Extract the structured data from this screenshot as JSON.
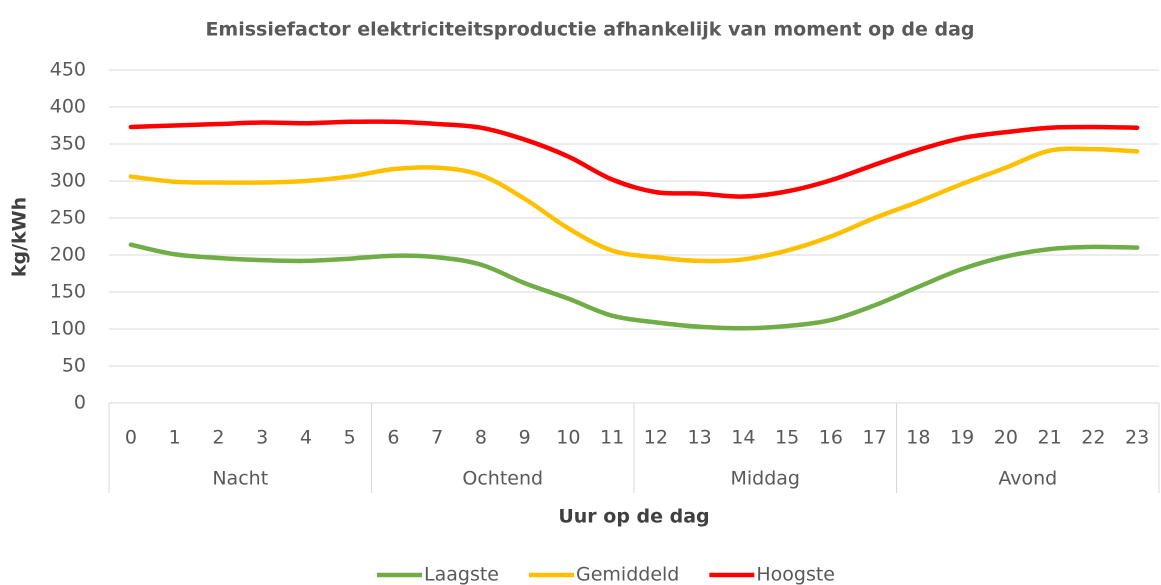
{
  "chart_data": {
    "type": "line",
    "title": "Emissiefactor elektriciteitsproductie afhankelijk van moment op de dag",
    "x_label": "Uur op de dag",
    "y_label": "kg/kWh",
    "categories": [
      "0",
      "1",
      "2",
      "3",
      "4",
      "5",
      "6",
      "7",
      "8",
      "9",
      "10",
      "11",
      "12",
      "13",
      "14",
      "15",
      "16",
      "17",
      "18",
      "19",
      "20",
      "21",
      "22",
      "23"
    ],
    "groups": [
      "Nacht",
      "Ochtend",
      "Middag",
      "Avond"
    ],
    "series": [
      {
        "name": "Laagste",
        "color": "#70ad47",
        "values": [
          214,
          201,
          196,
          193,
          192,
          195,
          199,
          197,
          187,
          162,
          141,
          118,
          109,
          103,
          101,
          104,
          112,
          132,
          157,
          181,
          198,
          208,
          211,
          210
        ]
      },
      {
        "name": "Gemiddeld",
        "color": "#ffc000",
        "values": [
          306,
          299,
          298,
          298,
          300,
          306,
          316,
          318,
          308,
          276,
          236,
          206,
          197,
          192,
          194,
          206,
          225,
          250,
          272,
          296,
          318,
          341,
          343,
          340
        ]
      },
      {
        "name": "Hoogste",
        "color": "#ff0000",
        "values": [
          373,
          375,
          377,
          379,
          378,
          380,
          380,
          377,
          372,
          356,
          333,
          302,
          285,
          283,
          279,
          286,
          301,
          322,
          342,
          358,
          366,
          372,
          373,
          372
        ]
      }
    ],
    "ylim": [
      0,
      450
    ],
    "yticks": [
      0,
      50,
      100,
      150,
      200,
      250,
      300,
      350,
      400,
      450
    ],
    "grid": true,
    "legend": "bottom",
    "smooth": true
  }
}
